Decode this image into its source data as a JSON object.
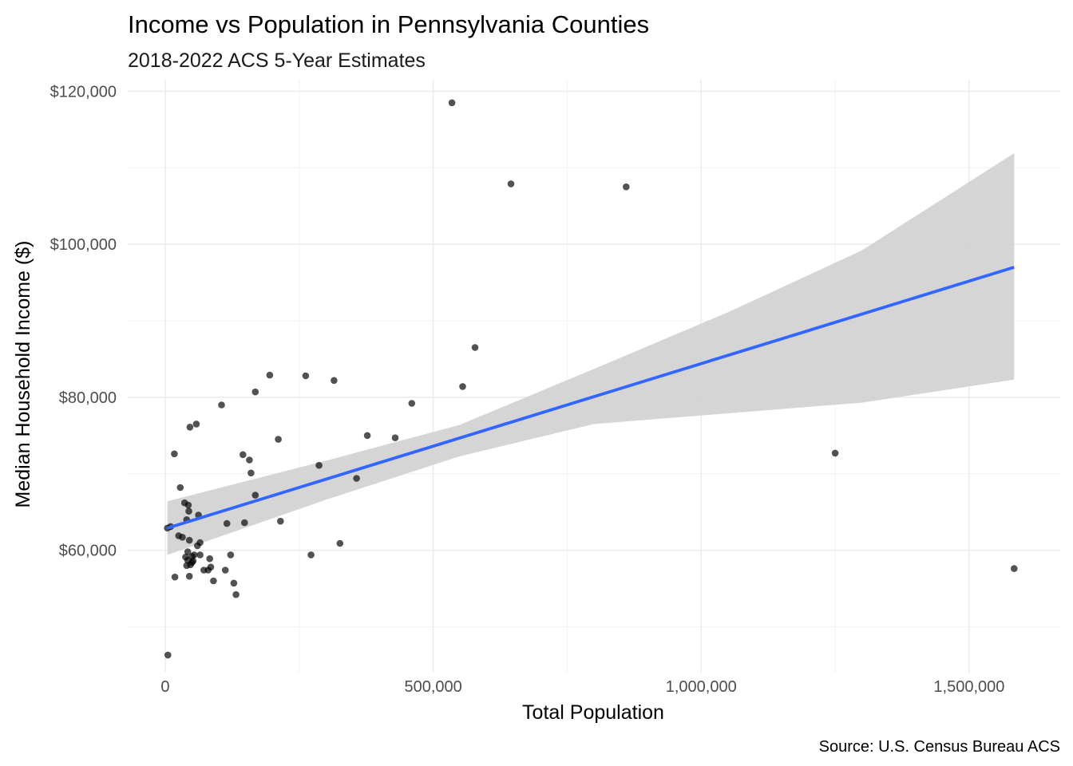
{
  "chart_data": {
    "type": "scatter",
    "title": "Income vs Population in Pennsylvania Counties",
    "subtitle": "2018-2022 ACS 5-Year Estimates",
    "xlabel": "Total Population",
    "ylabel": "Median Household Income ($)",
    "caption": "Source: U.S. Census Bureau ACS",
    "xlim": [
      -70000,
      1670000
    ],
    "ylim": [
      44000,
      121500
    ],
    "x_ticks": [
      0,
      500000,
      1000000,
      1500000
    ],
    "x_tick_labels": [
      "0",
      "500,000",
      "1,000,000",
      "1,500,000"
    ],
    "x_minor_ticks": [
      250000,
      750000,
      1250000
    ],
    "y_ticks": [
      60000,
      80000,
      100000,
      120000
    ],
    "y_tick_labels": [
      "$60,000",
      "$80,000",
      "$100,000",
      "$120,000"
    ],
    "y_minor_ticks": [
      50000,
      70000,
      90000,
      110000
    ],
    "grid": true,
    "colors": {
      "points": "#000000",
      "trend_line": "#3366FF",
      "confidence_band": "#d3d3d3",
      "grid_major": "#ebebeb",
      "grid_minor": "#f2f2f2"
    },
    "points": [
      {
        "x": 5000,
        "y": 46300
      },
      {
        "x": 4000,
        "y": 62900
      },
      {
        "x": 10000,
        "y": 63100
      },
      {
        "x": 17000,
        "y": 72600
      },
      {
        "x": 18000,
        "y": 56500
      },
      {
        "x": 25000,
        "y": 61900
      },
      {
        "x": 28000,
        "y": 68200
      },
      {
        "x": 32000,
        "y": 61700
      },
      {
        "x": 36000,
        "y": 66200
      },
      {
        "x": 38000,
        "y": 59100
      },
      {
        "x": 40000,
        "y": 64000
      },
      {
        "x": 40000,
        "y": 58000
      },
      {
        "x": 42000,
        "y": 59800
      },
      {
        "x": 42000,
        "y": 58700
      },
      {
        "x": 43000,
        "y": 65900
      },
      {
        "x": 44000,
        "y": 65100
      },
      {
        "x": 45000,
        "y": 61300
      },
      {
        "x": 45000,
        "y": 56600
      },
      {
        "x": 46000,
        "y": 76100
      },
      {
        "x": 47000,
        "y": 58100
      },
      {
        "x": 50000,
        "y": 59200
      },
      {
        "x": 50000,
        "y": 58400
      },
      {
        "x": 52000,
        "y": 58600
      },
      {
        "x": 54000,
        "y": 59400
      },
      {
        "x": 58000,
        "y": 76500
      },
      {
        "x": 60000,
        "y": 60600
      },
      {
        "x": 62000,
        "y": 64600
      },
      {
        "x": 65000,
        "y": 61000
      },
      {
        "x": 65000,
        "y": 59400
      },
      {
        "x": 72000,
        "y": 57400
      },
      {
        "x": 80000,
        "y": 57400
      },
      {
        "x": 83000,
        "y": 58900
      },
      {
        "x": 85000,
        "y": 57800
      },
      {
        "x": 90000,
        "y": 56000
      },
      {
        "x": 105000,
        "y": 79000
      },
      {
        "x": 112000,
        "y": 57400
      },
      {
        "x": 115000,
        "y": 63500
      },
      {
        "x": 122000,
        "y": 59400
      },
      {
        "x": 128000,
        "y": 55700
      },
      {
        "x": 132000,
        "y": 54200
      },
      {
        "x": 145000,
        "y": 72500
      },
      {
        "x": 148000,
        "y": 63600
      },
      {
        "x": 157000,
        "y": 71800
      },
      {
        "x": 160000,
        "y": 70100
      },
      {
        "x": 168000,
        "y": 80700
      },
      {
        "x": 168000,
        "y": 67200
      },
      {
        "x": 195000,
        "y": 82900
      },
      {
        "x": 211000,
        "y": 74500
      },
      {
        "x": 215000,
        "y": 63800
      },
      {
        "x": 262000,
        "y": 82800
      },
      {
        "x": 272000,
        "y": 59400
      },
      {
        "x": 287000,
        "y": 71100
      },
      {
        "x": 315000,
        "y": 82200
      },
      {
        "x": 326000,
        "y": 60900
      },
      {
        "x": 357000,
        "y": 69400
      },
      {
        "x": 377000,
        "y": 75000
      },
      {
        "x": 429000,
        "y": 74700
      },
      {
        "x": 460000,
        "y": 79200
      },
      {
        "x": 535000,
        "y": 118500
      },
      {
        "x": 555000,
        "y": 81400
      },
      {
        "x": 578000,
        "y": 86500
      },
      {
        "x": 645000,
        "y": 107900
      },
      {
        "x": 860000,
        "y": 107500
      },
      {
        "x": 1250000,
        "y": 72700
      },
      {
        "x": 1584000,
        "y": 57600
      }
    ],
    "trend_line": {
      "x": [
        4000,
        1584000
      ],
      "y": [
        62900,
        97000
      ]
    },
    "confidence_band": {
      "x": [
        4000,
        300000,
        550000,
        800000,
        1050000,
        1300000,
        1584000
      ],
      "upper": [
        66400,
        71700,
        76400,
        83700,
        91100,
        99200,
        111900
      ],
      "lower": [
        59400,
        66600,
        72300,
        76500,
        77900,
        79300,
        82300
      ]
    }
  }
}
